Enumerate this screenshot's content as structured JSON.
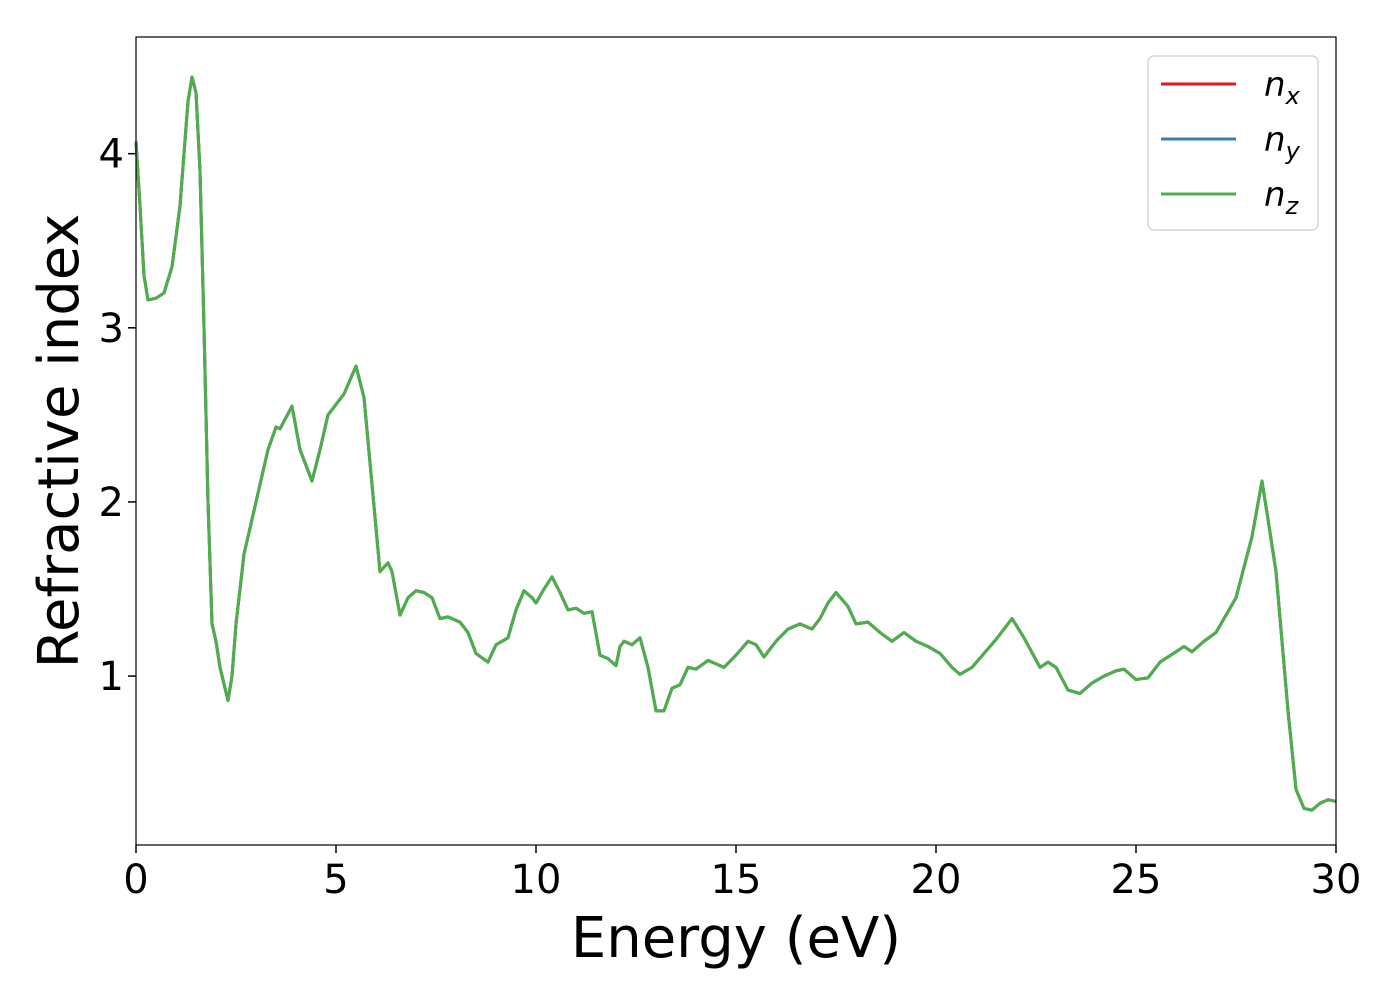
{
  "chart_data": {
    "type": "line",
    "xlabel": "Energy (eV)",
    "ylabel": "Refractive index",
    "x": [
      0,
      0.1,
      0.2,
      0.3,
      0.5,
      0.7,
      0.9,
      1.1,
      1.3,
      1.4,
      1.5,
      1.6,
      1.7,
      1.8,
      1.9,
      2.0,
      2.1,
      2.3,
      2.4,
      2.5,
      2.7,
      3.0,
      3.3,
      3.5,
      3.6,
      3.9,
      4.1,
      4.4,
      4.6,
      4.8,
      5.0,
      5.2,
      5.5,
      5.7,
      5.9,
      6.1,
      6.3,
      6.4,
      6.6,
      6.8,
      7.0,
      7.2,
      7.4,
      7.6,
      7.8,
      8.1,
      8.3,
      8.5,
      8.8,
      9.0,
      9.3,
      9.5,
      9.7,
      9.9,
      10.0,
      10.2,
      10.4,
      10.6,
      10.8,
      11.0,
      11.2,
      11.4,
      11.6,
      11.8,
      12.0,
      12.1,
      12.2,
      12.4,
      12.6,
      12.8,
      13.0,
      13.2,
      13.4,
      13.6,
      13.8,
      14.0,
      14.3,
      14.7,
      15.0,
      15.3,
      15.5,
      15.7,
      16.0,
      16.3,
      16.6,
      16.9,
      17.1,
      17.3,
      17.5,
      17.8,
      18.0,
      18.3,
      18.6,
      18.9,
      19.2,
      19.5,
      19.8,
      20.1,
      20.4,
      20.6,
      20.9,
      21.2,
      21.5,
      21.9,
      22.2,
      22.6,
      22.8,
      23.0,
      23.3,
      23.6,
      23.9,
      24.2,
      24.5,
      24.7,
      25.0,
      25.3,
      25.6,
      26.0,
      26.2,
      26.4,
      26.7,
      27.0,
      27.5,
      27.9,
      28.15,
      28.3,
      28.5,
      28.8,
      29.0,
      29.2,
      29.4,
      29.6,
      29.8,
      30.0
    ],
    "series": [
      {
        "name": "nx",
        "color": "#e41a1c",
        "values": [
          4.07,
          3.7,
          3.3,
          3.16,
          3.17,
          3.2,
          3.35,
          3.7,
          4.3,
          4.44,
          4.35,
          3.9,
          3.0,
          2.0,
          1.3,
          1.2,
          1.05,
          0.86,
          1.0,
          1.3,
          1.7,
          2.0,
          2.3,
          2.43,
          2.42,
          2.55,
          2.3,
          2.12,
          2.3,
          2.5,
          2.56,
          2.62,
          2.78,
          2.6,
          2.1,
          1.6,
          1.65,
          1.6,
          1.35,
          1.45,
          1.49,
          1.48,
          1.45,
          1.33,
          1.34,
          1.31,
          1.25,
          1.13,
          1.08,
          1.18,
          1.22,
          1.38,
          1.49,
          1.45,
          1.42,
          1.5,
          1.57,
          1.48,
          1.38,
          1.39,
          1.36,
          1.37,
          1.12,
          1.1,
          1.06,
          1.17,
          1.2,
          1.18,
          1.22,
          1.05,
          0.8,
          0.8,
          0.93,
          0.95,
          1.05,
          1.04,
          1.09,
          1.05,
          1.12,
          1.2,
          1.18,
          1.11,
          1.2,
          1.27,
          1.3,
          1.27,
          1.33,
          1.42,
          1.48,
          1.4,
          1.3,
          1.31,
          1.25,
          1.2,
          1.25,
          1.2,
          1.17,
          1.13,
          1.05,
          1.01,
          1.05,
          1.13,
          1.21,
          1.33,
          1.22,
          1.05,
          1.08,
          1.05,
          0.92,
          0.9,
          0.96,
          1.0,
          1.03,
          1.04,
          0.98,
          0.99,
          1.08,
          1.14,
          1.17,
          1.14,
          1.2,
          1.25,
          1.45,
          1.8,
          2.12,
          1.9,
          1.6,
          0.8,
          0.35,
          0.24,
          0.23,
          0.27,
          0.29,
          0.28
        ]
      },
      {
        "name": "ny",
        "color": "#377eb8",
        "values": [
          4.07,
          3.7,
          3.3,
          3.16,
          3.17,
          3.2,
          3.35,
          3.7,
          4.3,
          4.44,
          4.35,
          3.9,
          3.0,
          2.0,
          1.3,
          1.2,
          1.05,
          0.86,
          1.0,
          1.3,
          1.7,
          2.0,
          2.3,
          2.43,
          2.42,
          2.55,
          2.3,
          2.12,
          2.3,
          2.5,
          2.56,
          2.62,
          2.78,
          2.6,
          2.1,
          1.6,
          1.65,
          1.6,
          1.35,
          1.45,
          1.49,
          1.48,
          1.45,
          1.33,
          1.34,
          1.31,
          1.25,
          1.13,
          1.08,
          1.18,
          1.22,
          1.38,
          1.49,
          1.45,
          1.42,
          1.5,
          1.57,
          1.48,
          1.38,
          1.39,
          1.36,
          1.37,
          1.12,
          1.1,
          1.06,
          1.17,
          1.2,
          1.18,
          1.22,
          1.05,
          0.8,
          0.8,
          0.93,
          0.95,
          1.05,
          1.04,
          1.09,
          1.05,
          1.12,
          1.2,
          1.18,
          1.11,
          1.2,
          1.27,
          1.3,
          1.27,
          1.33,
          1.42,
          1.48,
          1.4,
          1.3,
          1.31,
          1.25,
          1.2,
          1.25,
          1.2,
          1.17,
          1.13,
          1.05,
          1.01,
          1.05,
          1.13,
          1.21,
          1.33,
          1.22,
          1.05,
          1.08,
          1.05,
          0.92,
          0.9,
          0.96,
          1.0,
          1.03,
          1.04,
          0.98,
          0.99,
          1.08,
          1.14,
          1.17,
          1.14,
          1.2,
          1.25,
          1.45,
          1.8,
          2.12,
          1.9,
          1.6,
          0.8,
          0.35,
          0.24,
          0.23,
          0.27,
          0.29,
          0.28
        ]
      },
      {
        "name": "nz",
        "color": "#4daf4a",
        "values": [
          4.07,
          3.7,
          3.3,
          3.16,
          3.17,
          3.2,
          3.35,
          3.7,
          4.3,
          4.44,
          4.35,
          3.9,
          3.0,
          2.0,
          1.3,
          1.2,
          1.05,
          0.86,
          1.0,
          1.3,
          1.7,
          2.0,
          2.3,
          2.43,
          2.42,
          2.55,
          2.3,
          2.12,
          2.3,
          2.5,
          2.56,
          2.62,
          2.78,
          2.6,
          2.1,
          1.6,
          1.65,
          1.6,
          1.35,
          1.45,
          1.49,
          1.48,
          1.45,
          1.33,
          1.34,
          1.31,
          1.25,
          1.13,
          1.08,
          1.18,
          1.22,
          1.38,
          1.49,
          1.45,
          1.42,
          1.5,
          1.57,
          1.48,
          1.38,
          1.39,
          1.36,
          1.37,
          1.12,
          1.1,
          1.06,
          1.17,
          1.2,
          1.18,
          1.22,
          1.05,
          0.8,
          0.8,
          0.93,
          0.95,
          1.05,
          1.04,
          1.09,
          1.05,
          1.12,
          1.2,
          1.18,
          1.11,
          1.2,
          1.27,
          1.3,
          1.27,
          1.33,
          1.42,
          1.48,
          1.4,
          1.3,
          1.31,
          1.25,
          1.2,
          1.25,
          1.2,
          1.17,
          1.13,
          1.05,
          1.01,
          1.05,
          1.13,
          1.21,
          1.33,
          1.22,
          1.05,
          1.08,
          1.05,
          0.92,
          0.9,
          0.96,
          1.0,
          1.03,
          1.04,
          0.98,
          0.99,
          1.08,
          1.14,
          1.17,
          1.14,
          1.2,
          1.25,
          1.45,
          1.8,
          2.12,
          1.9,
          1.6,
          0.8,
          0.35,
          0.24,
          0.23,
          0.27,
          0.29,
          0.28
        ]
      }
    ],
    "xlim": [
      0,
      30
    ],
    "xticks": [
      0,
      5,
      10,
      15,
      20,
      25,
      30
    ],
    "ylim": [
      0.03,
      4.67
    ],
    "yticks": [
      1,
      2,
      3,
      4
    ],
    "legend": "upper right"
  }
}
